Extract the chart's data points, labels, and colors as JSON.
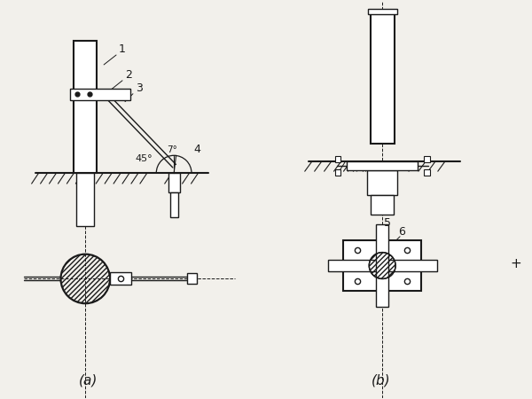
{
  "bg_color": "#f2f0eb",
  "line_color": "#1a1a1a",
  "label_a": "(a)",
  "label_b": "(b)",
  "angle_45": "45°",
  "angle_7": "7°"
}
